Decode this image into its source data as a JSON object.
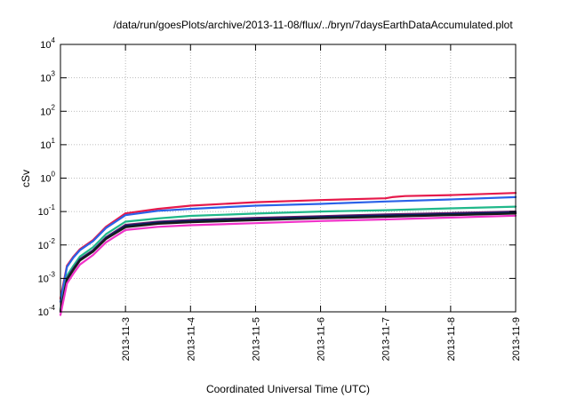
{
  "chart_data": {
    "type": "line",
    "title": "/data/run/goesPlots/archive/2013-11-08/flux/../bryn/7daysEarthDataAccumulated.plot",
    "xlabel": "Coordinated Universal Time (UTC)",
    "ylabel": "cSv",
    "y_scale": "log",
    "ylim": [
      "1e-4",
      "1e4"
    ],
    "xlim": [
      "2013-11-02T00:00",
      "2013-11-09T00:00"
    ],
    "grid": true,
    "x_ticks": [
      "2013-11-3",
      "2013-11-4",
      "2013-11-5",
      "2013-11-6",
      "2013-11-7",
      "2013-11-8",
      "2013-11-9"
    ],
    "y_ticks": [
      {
        "base": "10",
        "exp": "-4",
        "value": 0.0001
      },
      {
        "base": "10",
        "exp": "-3",
        "value": 0.001
      },
      {
        "base": "10",
        "exp": "-2",
        "value": 0.01
      },
      {
        "base": "10",
        "exp": "-1",
        "value": 0.1
      },
      {
        "base": "10",
        "exp": "0",
        "value": 1
      },
      {
        "base": "10",
        "exp": "1",
        "value": 10
      },
      {
        "base": "10",
        "exp": "2",
        "value": 100
      },
      {
        "base": "10",
        "exp": "3",
        "value": 1000
      },
      {
        "base": "10",
        "exp": "4",
        "value": 10000
      }
    ],
    "series": [
      {
        "color": "#e6194b",
        "x": [
          "2013-11-02T00:00",
          "2013-11-02T02:24",
          "2013-11-02T04:48",
          "2013-11-02T07:12",
          "2013-11-02T12:00",
          "2013-11-02T16:48",
          "2013-11-03T00:00",
          "2013-11-03T12:00",
          "2013-11-04T00:00",
          "2013-11-05T00:00",
          "2013-11-06T00:00",
          "2013-11-07T00:00",
          "2013-11-07T02:24",
          "2013-11-07T07:12",
          "2013-11-08T00:00",
          "2013-11-09T00:00"
        ],
        "y": [
          0.00025,
          0.0024,
          0.0045,
          0.0075,
          0.014,
          0.035,
          0.088,
          0.12,
          0.15,
          0.19,
          0.22,
          0.25,
          0.27,
          0.29,
          0.31,
          0.36
        ]
      },
      {
        "color": "#2a62e8",
        "x": [
          "2013-11-02T00:00",
          "2013-11-02T02:24",
          "2013-11-02T04:48",
          "2013-11-02T07:12",
          "2013-11-02T12:00",
          "2013-11-02T16:48",
          "2013-11-03T00:00",
          "2013-11-03T12:00",
          "2013-11-04T00:00",
          "2013-11-05T00:00",
          "2013-11-06T00:00",
          "2013-11-07T00:00",
          "2013-11-08T00:00",
          "2013-11-09T00:00"
        ],
        "y": [
          0.0002,
          0.0022,
          0.0042,
          0.007,
          0.013,
          0.032,
          0.078,
          0.105,
          0.12,
          0.15,
          0.17,
          0.2,
          0.23,
          0.27
        ]
      },
      {
        "color": "#20b88a",
        "x": [
          "2013-11-02T00:00",
          "2013-11-02T02:24",
          "2013-11-02T04:48",
          "2013-11-02T07:12",
          "2013-11-02T12:00",
          "2013-11-02T16:48",
          "2013-11-03T00:00",
          "2013-11-03T12:00",
          "2013-11-04T00:00",
          "2013-11-05T00:00",
          "2013-11-06T00:00",
          "2013-11-07T00:00",
          "2013-11-08T00:00",
          "2013-11-09T00:00"
        ],
        "y": [
          0.00012,
          0.0012,
          0.0024,
          0.0045,
          0.0085,
          0.021,
          0.05,
          0.062,
          0.074,
          0.087,
          0.1,
          0.11,
          0.125,
          0.14
        ]
      },
      {
        "color": "#6a1b6a",
        "x": [
          "2013-11-02T00:00",
          "2013-11-02T02:24",
          "2013-11-02T04:48",
          "2013-11-02T07:12",
          "2013-11-02T12:00",
          "2013-11-02T16:48",
          "2013-11-03T00:00",
          "2013-11-03T12:00",
          "2013-11-04T00:00",
          "2013-11-05T00:00",
          "2013-11-06T00:00",
          "2013-11-07T00:00",
          "2013-11-08T00:00",
          "2013-11-09T00:00"
        ],
        "y": [
          0.00011,
          0.001,
          0.002,
          0.0038,
          0.007,
          0.017,
          0.04,
          0.05,
          0.056,
          0.065,
          0.073,
          0.082,
          0.09,
          0.1
        ]
      },
      {
        "color": "#00205b",
        "x": [
          "2013-11-02T00:00",
          "2013-11-02T02:24",
          "2013-11-02T04:48",
          "2013-11-02T07:12",
          "2013-11-02T12:00",
          "2013-11-02T16:48",
          "2013-11-03T00:00",
          "2013-11-03T12:00",
          "2013-11-04T00:00",
          "2013-11-05T00:00",
          "2013-11-06T00:00",
          "2013-11-07T00:00",
          "2013-11-08T00:00",
          "2013-11-09T00:00"
        ],
        "y": [
          0.0001,
          0.00095,
          0.0019,
          0.0036,
          0.0067,
          0.016,
          0.037,
          0.047,
          0.052,
          0.06,
          0.068,
          0.076,
          0.084,
          0.094
        ]
      },
      {
        "color": "#1a1a1a",
        "x": [
          "2013-11-02T00:00",
          "2013-11-02T02:24",
          "2013-11-02T04:48",
          "2013-11-02T07:12",
          "2013-11-02T12:00",
          "2013-11-02T16:48",
          "2013-11-03T00:00",
          "2013-11-03T12:00",
          "2013-11-04T00:00",
          "2013-11-05T00:00",
          "2013-11-06T00:00",
          "2013-11-07T00:00",
          "2013-11-08T00:00",
          "2013-11-09T00:00"
        ],
        "y": [
          0.0001,
          0.0009,
          0.0018,
          0.0034,
          0.0063,
          0.015,
          0.034,
          0.043,
          0.048,
          0.055,
          0.063,
          0.07,
          0.078,
          0.087
        ]
      },
      {
        "color": "#f032c8",
        "x": [
          "2013-11-02T00:00",
          "2013-11-02T02:24",
          "2013-11-02T04:48",
          "2013-11-02T07:12",
          "2013-11-02T12:00",
          "2013-11-02T16:48",
          "2013-11-03T00:00",
          "2013-11-03T12:00",
          "2013-11-04T00:00",
          "2013-11-05T00:00",
          "2013-11-06T00:00",
          "2013-11-07T00:00",
          "2013-11-08T00:00",
          "2013-11-09T00:00"
        ],
        "y": [
          8e-05,
          0.0007,
          0.0014,
          0.0026,
          0.005,
          0.012,
          0.028,
          0.035,
          0.039,
          0.045,
          0.052,
          0.058,
          0.066,
          0.075
        ]
      }
    ]
  }
}
